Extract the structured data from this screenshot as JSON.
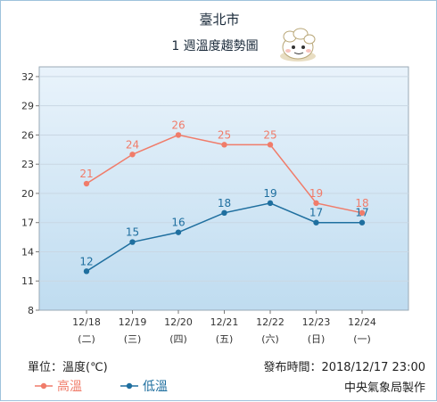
{
  "header": {
    "city": "臺北市",
    "subtitle": "1 週溫度趨勢圖"
  },
  "footer": {
    "unit": "單位：溫度(℃)",
    "published": "發布時間：2018/12/17 23:00",
    "source": "中央氣象局製作"
  },
  "colors": {
    "high": "#f07c6a",
    "low": "#1f6f9f",
    "grid": "#c9d7e3",
    "bg_top": "#e9f3fb",
    "bg_bottom": "#bfdcf0"
  },
  "chart_data": {
    "type": "line",
    "categories": [
      "12/18",
      "12/19",
      "12/20",
      "12/21",
      "12/22",
      "12/23",
      "12/24"
    ],
    "weekdays": [
      "(二)",
      "(三)",
      "(四)",
      "(五)",
      "(六)",
      "(日)",
      "(一)"
    ],
    "yticks": [
      8,
      11,
      14,
      17,
      20,
      23,
      26,
      29,
      32
    ],
    "ylim": [
      8,
      33
    ],
    "grid": true,
    "legend": "bottom-left",
    "series": [
      {
        "name": "高溫",
        "key": "high",
        "values": [
          21,
          24,
          26,
          25,
          25,
          19,
          18
        ]
      },
      {
        "name": "低溫",
        "key": "low",
        "values": [
          12,
          15,
          16,
          18,
          19,
          17,
          17
        ]
      }
    ]
  }
}
